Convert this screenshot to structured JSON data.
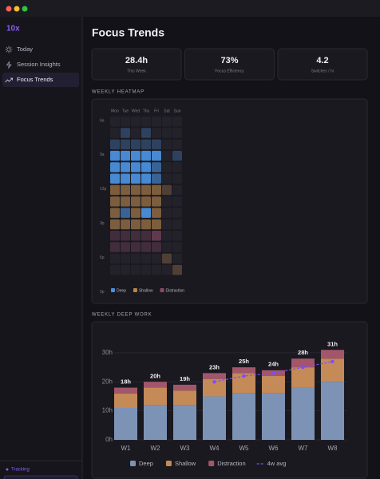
{
  "sidebar": {
    "logo": "10x",
    "nav": [
      "Today",
      "Session Insights",
      "Focus Trends"
    ],
    "active": 2,
    "status": "Tracking"
  },
  "header": {
    "title": "Focus Trends"
  },
  "stats": [
    {
      "value": "28.4h",
      "label": "This Week"
    },
    {
      "value": "73%",
      "label": "Focus Efficiency"
    },
    {
      "value": "4.2",
      "label": "Switches / hr"
    }
  ],
  "heatmap": {
    "title": "WEEKLY HEATMAP",
    "days": [
      "Mon",
      "Tue",
      "Wed",
      "Thu",
      "Fri",
      "Sat",
      "Sun"
    ],
    "hour_labels": [
      "6a",
      "9a",
      "12p",
      "3p",
      "6p",
      "9p"
    ],
    "legend": [
      {
        "name": "Deep",
        "color": "#4a8fdb"
      },
      {
        "name": "Shallow",
        "color": "#b8864c"
      },
      {
        "name": "Distraction",
        "color": "#8a4a66"
      }
    ],
    "cells": [
      [
        null,
        null,
        null,
        null,
        null,
        null,
        null
      ],
      [
        null,
        [
          0,
          1
        ],
        null,
        [
          0,
          1
        ],
        null,
        null,
        null
      ],
      [
        [
          0,
          1
        ],
        [
          0,
          1
        ],
        [
          0,
          1
        ],
        [
          0,
          1
        ],
        [
          0,
          1
        ],
        null,
        null
      ],
      [
        [
          0,
          3
        ],
        [
          0,
          3
        ],
        [
          0,
          3
        ],
        [
          0,
          3
        ],
        [
          0,
          3
        ],
        null,
        [
          0,
          1
        ]
      ],
      [
        [
          0,
          3
        ],
        [
          0,
          3
        ],
        [
          0,
          3
        ],
        [
          0,
          3
        ],
        [
          0,
          2
        ],
        null,
        null
      ],
      [
        [
          0,
          3
        ],
        [
          0,
          3
        ],
        [
          0,
          3
        ],
        [
          0,
          3
        ],
        [
          0,
          2
        ],
        null,
        null
      ],
      [
        [
          1,
          2
        ],
        [
          1,
          2
        ],
        [
          1,
          2
        ],
        [
          1,
          2
        ],
        [
          1,
          2
        ],
        [
          1,
          1
        ],
        null
      ],
      [
        [
          1,
          2
        ],
        [
          1,
          2
        ],
        [
          1,
          2
        ],
        [
          1,
          2
        ],
        [
          1,
          2
        ],
        null,
        null
      ],
      [
        [
          1,
          2
        ],
        [
          0,
          2
        ],
        [
          1,
          2
        ],
        [
          0,
          3
        ],
        [
          1,
          2
        ],
        null,
        null
      ],
      [
        [
          1,
          2
        ],
        [
          1,
          2
        ],
        [
          1,
          2
        ],
        [
          1,
          2
        ],
        [
          1,
          2
        ],
        null,
        null
      ],
      [
        [
          2,
          1
        ],
        [
          2,
          1
        ],
        [
          2,
          1
        ],
        [
          2,
          1
        ],
        [
          2,
          2
        ],
        null,
        null
      ],
      [
        [
          2,
          1
        ],
        [
          2,
          1
        ],
        [
          2,
          1
        ],
        [
          2,
          1
        ],
        [
          2,
          1
        ],
        null,
        null
      ],
      [
        null,
        null,
        null,
        null,
        null,
        [
          1,
          1
        ],
        null
      ],
      [
        null,
        null,
        null,
        null,
        null,
        null,
        [
          1,
          1
        ]
      ]
    ]
  },
  "chart_data": {
    "type": "bar",
    "stacked": true,
    "title": "WEEKLY DEEP WORK",
    "categories": [
      "W1",
      "W2",
      "W3",
      "W4",
      "W5",
      "W6",
      "W7",
      "W8"
    ],
    "series": [
      {
        "name": "Deep",
        "color": "#7d93b6",
        "values": [
          11,
          12,
          12,
          15,
          16,
          16,
          18,
          20
        ]
      },
      {
        "name": "Shallow",
        "color": "#c48a58",
        "values": [
          5,
          6,
          5,
          6,
          7,
          6,
          7,
          8
        ]
      },
      {
        "name": "Distraction",
        "color": "#a3566a",
        "values": [
          2,
          2,
          2,
          2,
          2,
          2,
          3,
          3
        ]
      },
      {
        "name": "4w avg",
        "type": "line",
        "color": "#7c4dff",
        "values": [
          null,
          null,
          null,
          20,
          22,
          23,
          25,
          27
        ]
      }
    ],
    "totals": {
      "values": [
        18,
        20,
        19,
        23,
        25,
        24,
        28,
        31
      ],
      "value_labels": [
        "18h",
        "20h",
        "19h",
        "23h",
        "25h",
        "24h",
        "28h",
        "31h"
      ]
    },
    "ylim": [
      0,
      33
    ],
    "yticks": [
      {
        "value": 0,
        "label": "0h"
      },
      {
        "value": 10,
        "label": "10h"
      },
      {
        "value": 20,
        "label": "20h"
      },
      {
        "value": 30,
        "label": "30h"
      }
    ],
    "grid": true
  }
}
